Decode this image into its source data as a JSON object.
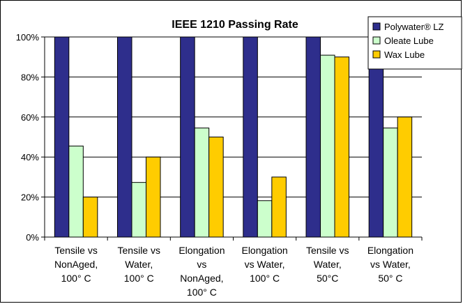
{
  "chart_data": {
    "type": "bar",
    "title": "IEEE 1210 Passing Rate",
    "categories": [
      [
        "Tensile vs",
        "NonAged,",
        "100° C"
      ],
      [
        "Tensile vs",
        "Water,",
        "100° C"
      ],
      [
        "Elongation",
        "vs",
        "NonAged,",
        "100° C"
      ],
      [
        "Elongation",
        "vs Water,",
        "100° C"
      ],
      [
        "Tensile vs",
        "Water,",
        "50°C"
      ],
      [
        "Elongation",
        "vs Water,",
        "50° C"
      ]
    ],
    "series": [
      {
        "name": "Polywater® LZ",
        "color": "#2e2e8c",
        "values": [
          100,
          100,
          100,
          100,
          100,
          100
        ]
      },
      {
        "name": "Oleate Lube",
        "color": "#ccffcc",
        "values": [
          45.5,
          27.3,
          54.5,
          18.2,
          90.9,
          54.5
        ]
      },
      {
        "name": "Wax Lube",
        "color": "#ffcc00",
        "values": [
          20,
          40,
          50,
          30,
          90,
          60
        ]
      }
    ],
    "ylim": [
      0,
      100
    ],
    "yticks": [
      "0%",
      "20%",
      "40%",
      "60%",
      "80%",
      "100%"
    ],
    "grid": true,
    "legend_position": "top-right"
  }
}
